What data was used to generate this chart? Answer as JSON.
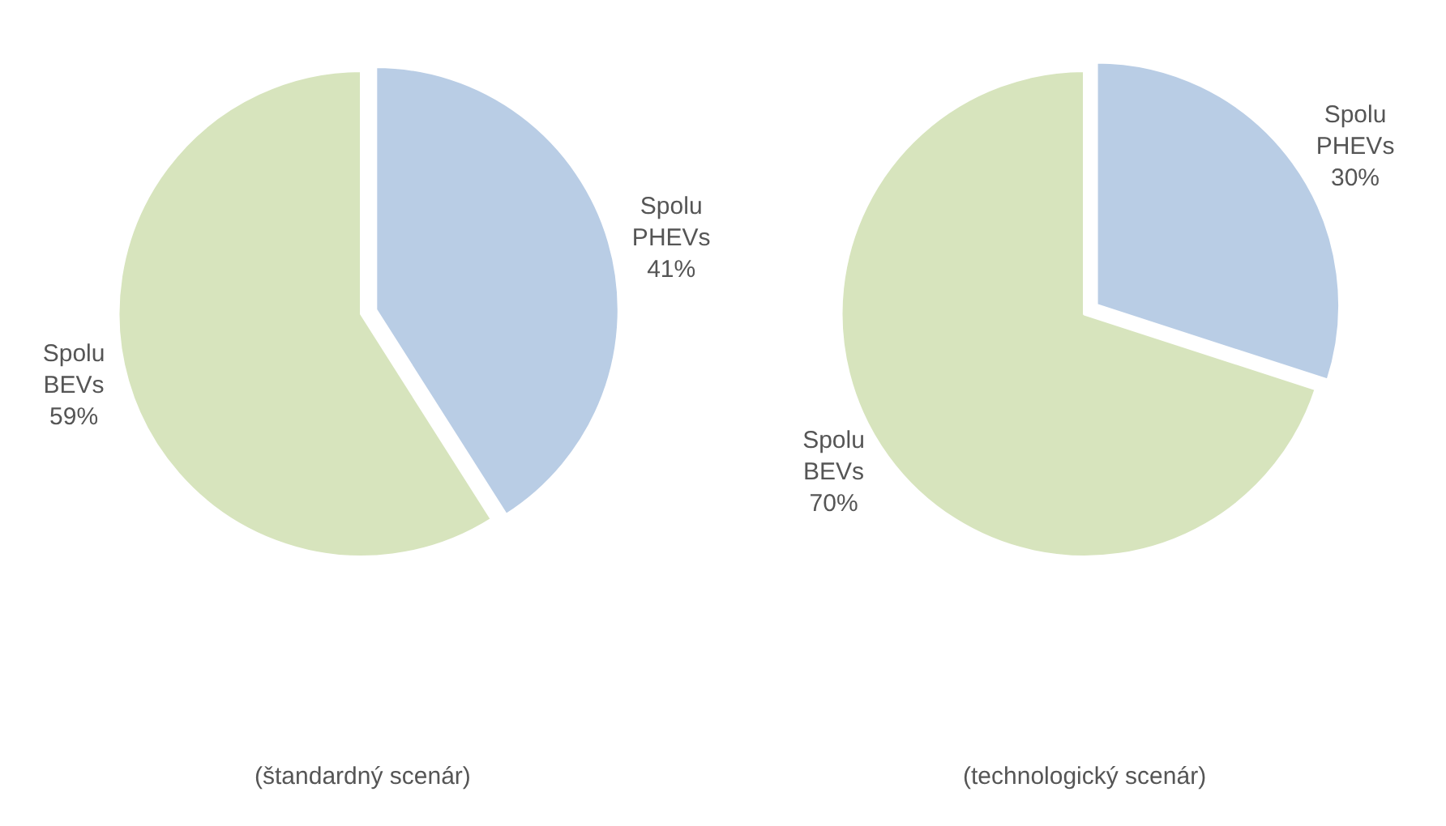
{
  "chart_data": [
    {
      "type": "pie",
      "categories": [
        "Spolu PHEVs",
        "Spolu BEVs"
      ],
      "values": [
        41,
        59
      ],
      "value_labels": [
        "41%",
        "59%"
      ],
      "colors": [
        "#b9cde5",
        "#d7e4bd"
      ],
      "annotations": [
        "(štandardný scenár)"
      ]
    },
    {
      "type": "pie",
      "categories": [
        "Spolu PHEVs",
        "Spolu BEVs"
      ],
      "values": [
        30,
        70
      ],
      "value_labels": [
        "30%",
        "70%"
      ],
      "colors": [
        "#b9cde5",
        "#d7e4bd"
      ],
      "annotations": [
        "(technologický scenár)"
      ]
    }
  ]
}
